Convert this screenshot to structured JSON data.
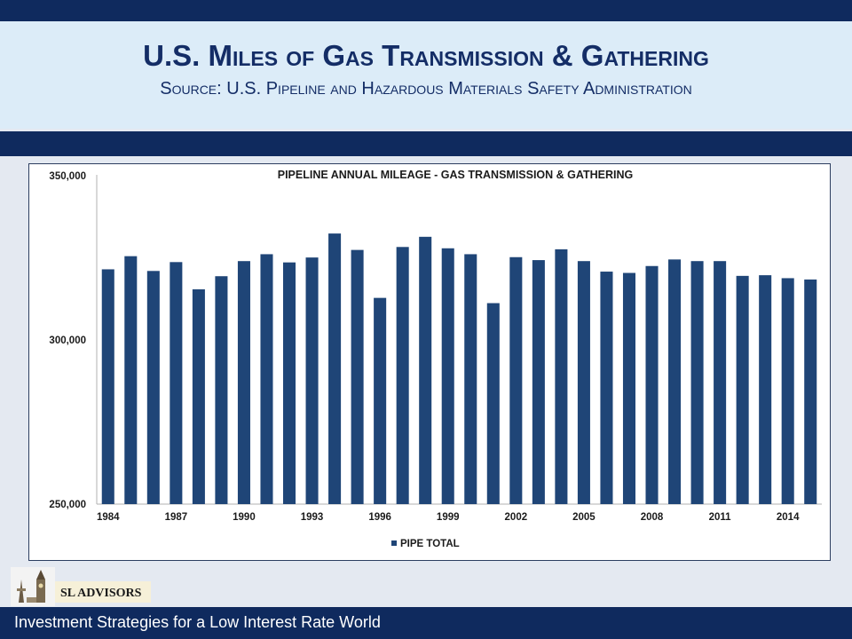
{
  "slide": {
    "title": "U.S. Miles of Gas Transmission & Gathering",
    "subtitle": "Source: U.S. Pipeline and Hazardous Materials Safety Administration",
    "footer": "Investment Strategies for a Low Interest Rate World",
    "logo_text": "SL ADVISORS"
  },
  "colors": {
    "bar": "#1f4577",
    "navy": "#0f2a5e",
    "title_blue": "#142d66"
  },
  "chart_data": {
    "type": "bar",
    "title": "PIPELINE ANNUAL MILEAGE - GAS TRANSMISSION & GATHERING",
    "x": [
      1984,
      1985,
      1986,
      1987,
      1988,
      1989,
      1990,
      1991,
      1992,
      1993,
      1994,
      1995,
      1996,
      1997,
      1998,
      1999,
      2000,
      2001,
      2002,
      2003,
      2004,
      2005,
      2006,
      2007,
      2008,
      2009,
      2010,
      2011,
      2012,
      2013,
      2014,
      2015
    ],
    "x_tick_labels": [
      "1984",
      "1987",
      "1990",
      "1993",
      "1996",
      "1999",
      "2002",
      "2005",
      "2008",
      "2011",
      "2014"
    ],
    "series": [
      {
        "name": "PIPE TOTAL",
        "values": [
          321500,
          325500,
          321000,
          323700,
          315400,
          319400,
          324000,
          326100,
          323600,
          325100,
          332400,
          327400,
          312800,
          328300,
          331400,
          327900,
          326100,
          311200,
          325200,
          324300,
          327600,
          324000,
          320800,
          320400,
          322500,
          324500,
          324000,
          324000,
          319500,
          319700,
          318800,
          318400
        ]
      }
    ],
    "ylim": [
      250000,
      350000
    ],
    "y_ticks": [
      "250,000",
      "300,000",
      "350,000"
    ],
    "y_tick_values": [
      250000,
      300000,
      350000
    ],
    "legend_position": "bottom",
    "grid": false
  }
}
